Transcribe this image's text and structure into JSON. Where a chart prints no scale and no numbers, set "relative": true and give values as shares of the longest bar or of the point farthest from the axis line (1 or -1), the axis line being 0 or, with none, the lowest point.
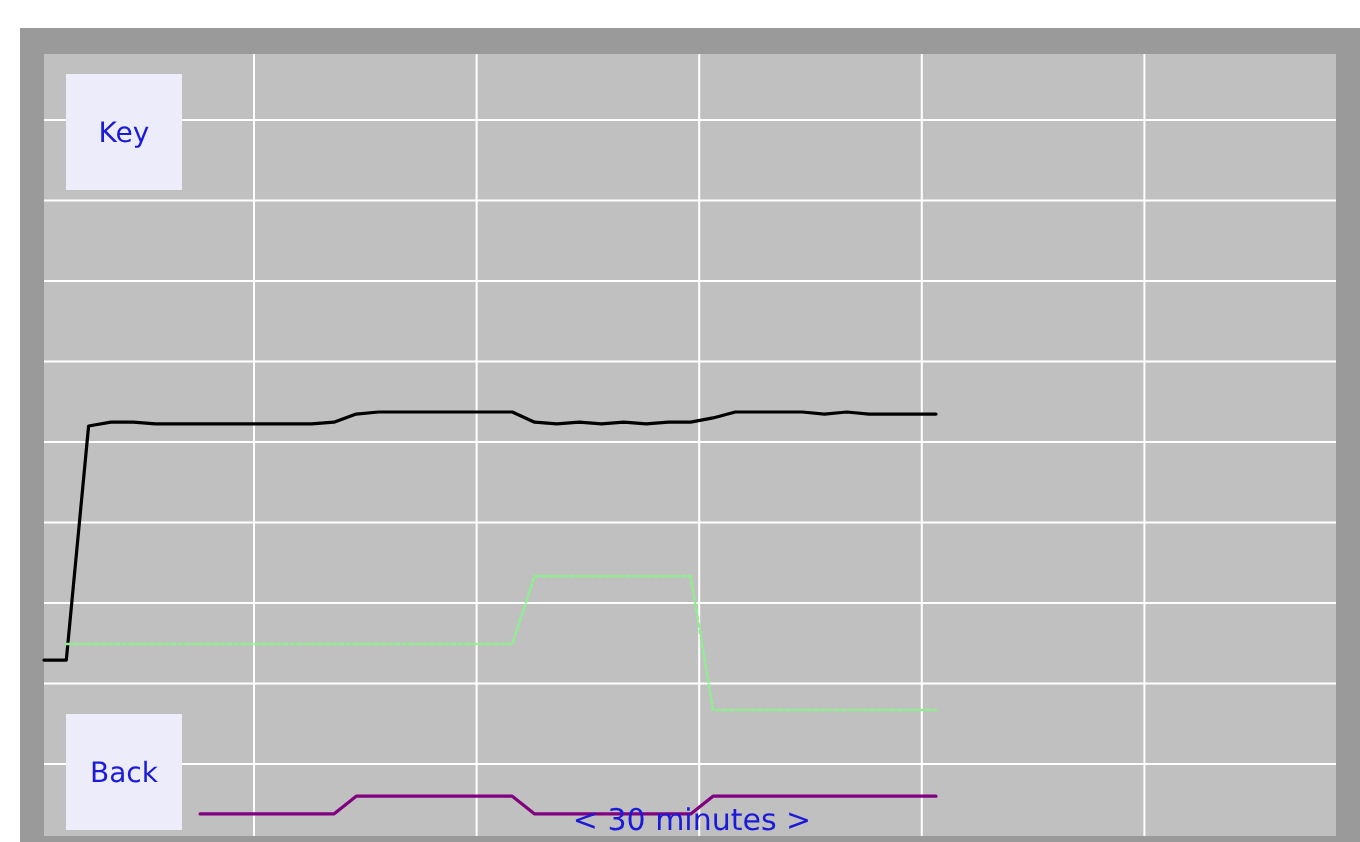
{
  "chart_data": {
    "type": "line",
    "relative": true,
    "xlabel": "< 30 minutes >",
    "annotations": [
      "Key",
      "Back"
    ],
    "grid": true,
    "legend": false,
    "marker": "none",
    "categories": [
      null,
      null,
      null,
      null,
      null,
      null,
      null,
      null,
      null,
      null,
      null,
      null,
      null,
      null,
      null,
      null,
      null,
      null,
      null,
      null,
      null,
      null,
      null,
      null,
      null,
      null,
      null,
      null,
      null,
      null,
      null,
      null,
      null,
      null,
      null,
      null,
      null,
      null,
      null,
      null,
      null,
      null,
      null,
      null,
      null,
      null,
      null,
      null,
      null,
      null,
      null,
      null,
      null,
      null,
      null,
      null,
      null,
      null,
      null
    ],
    "series": [
      {
        "color": "#000000",
        "line_style": "solid",
        "values": [
          0.415,
          0.415,
          0.967,
          0.976,
          0.976,
          0.972,
          0.972,
          0.972,
          0.972,
          0.972,
          0.972,
          0.972,
          0.972,
          0.976,
          0.995,
          1,
          1,
          1,
          1,
          1,
          1,
          1,
          0.976,
          0.972,
          0.976,
          0.972,
          0.976,
          0.972,
          0.976,
          0.976,
          0.986,
          1,
          1,
          1,
          1,
          0.995,
          1,
          0.995,
          0.995,
          0.995,
          0.995,
          null,
          null,
          null,
          null,
          null,
          null,
          null,
          null,
          null,
          null,
          null,
          null,
          null,
          null,
          null,
          null,
          null,
          null
        ]
      },
      {
        "color": "#90ee90",
        "line_style": "dotted",
        "values": [
          null,
          0.453,
          0.453,
          0.453,
          0.453,
          0.453,
          0.453,
          0.453,
          0.453,
          0.453,
          0.453,
          0.453,
          0.453,
          0.453,
          0.453,
          0.453,
          0.453,
          0.453,
          0.453,
          0.453,
          0.453,
          0.453,
          0.613,
          0.613,
          0.613,
          0.613,
          0.613,
          0.613,
          0.613,
          0.613,
          0.297,
          0.297,
          0.297,
          0.297,
          0.297,
          0.297,
          0.297,
          0.297,
          0.297,
          0.297,
          0.297,
          null,
          null,
          null,
          null,
          null,
          null,
          null,
          null,
          null,
          null,
          null,
          null,
          null,
          null,
          null,
          null,
          null,
          null
        ]
      },
      {
        "color": "#800080",
        "line_style": "solid",
        "values": [
          null,
          null,
          null,
          null,
          null,
          null,
          null,
          0.052,
          0.052,
          0.052,
          0.052,
          0.052,
          0.052,
          0.052,
          0.094,
          0.094,
          0.094,
          0.094,
          0.094,
          0.094,
          0.094,
          0.094,
          0.052,
          0.052,
          0.052,
          0.052,
          0.052,
          0.052,
          0.052,
          0.052,
          0.094,
          0.094,
          0.094,
          0.094,
          0.094,
          0.094,
          0.094,
          0.094,
          0.094,
          0.094,
          0.094,
          null,
          null,
          null,
          null,
          null,
          null,
          null,
          null,
          null,
          null,
          null,
          null,
          null,
          null,
          null,
          null,
          null,
          null
        ]
      }
    ]
  }
}
